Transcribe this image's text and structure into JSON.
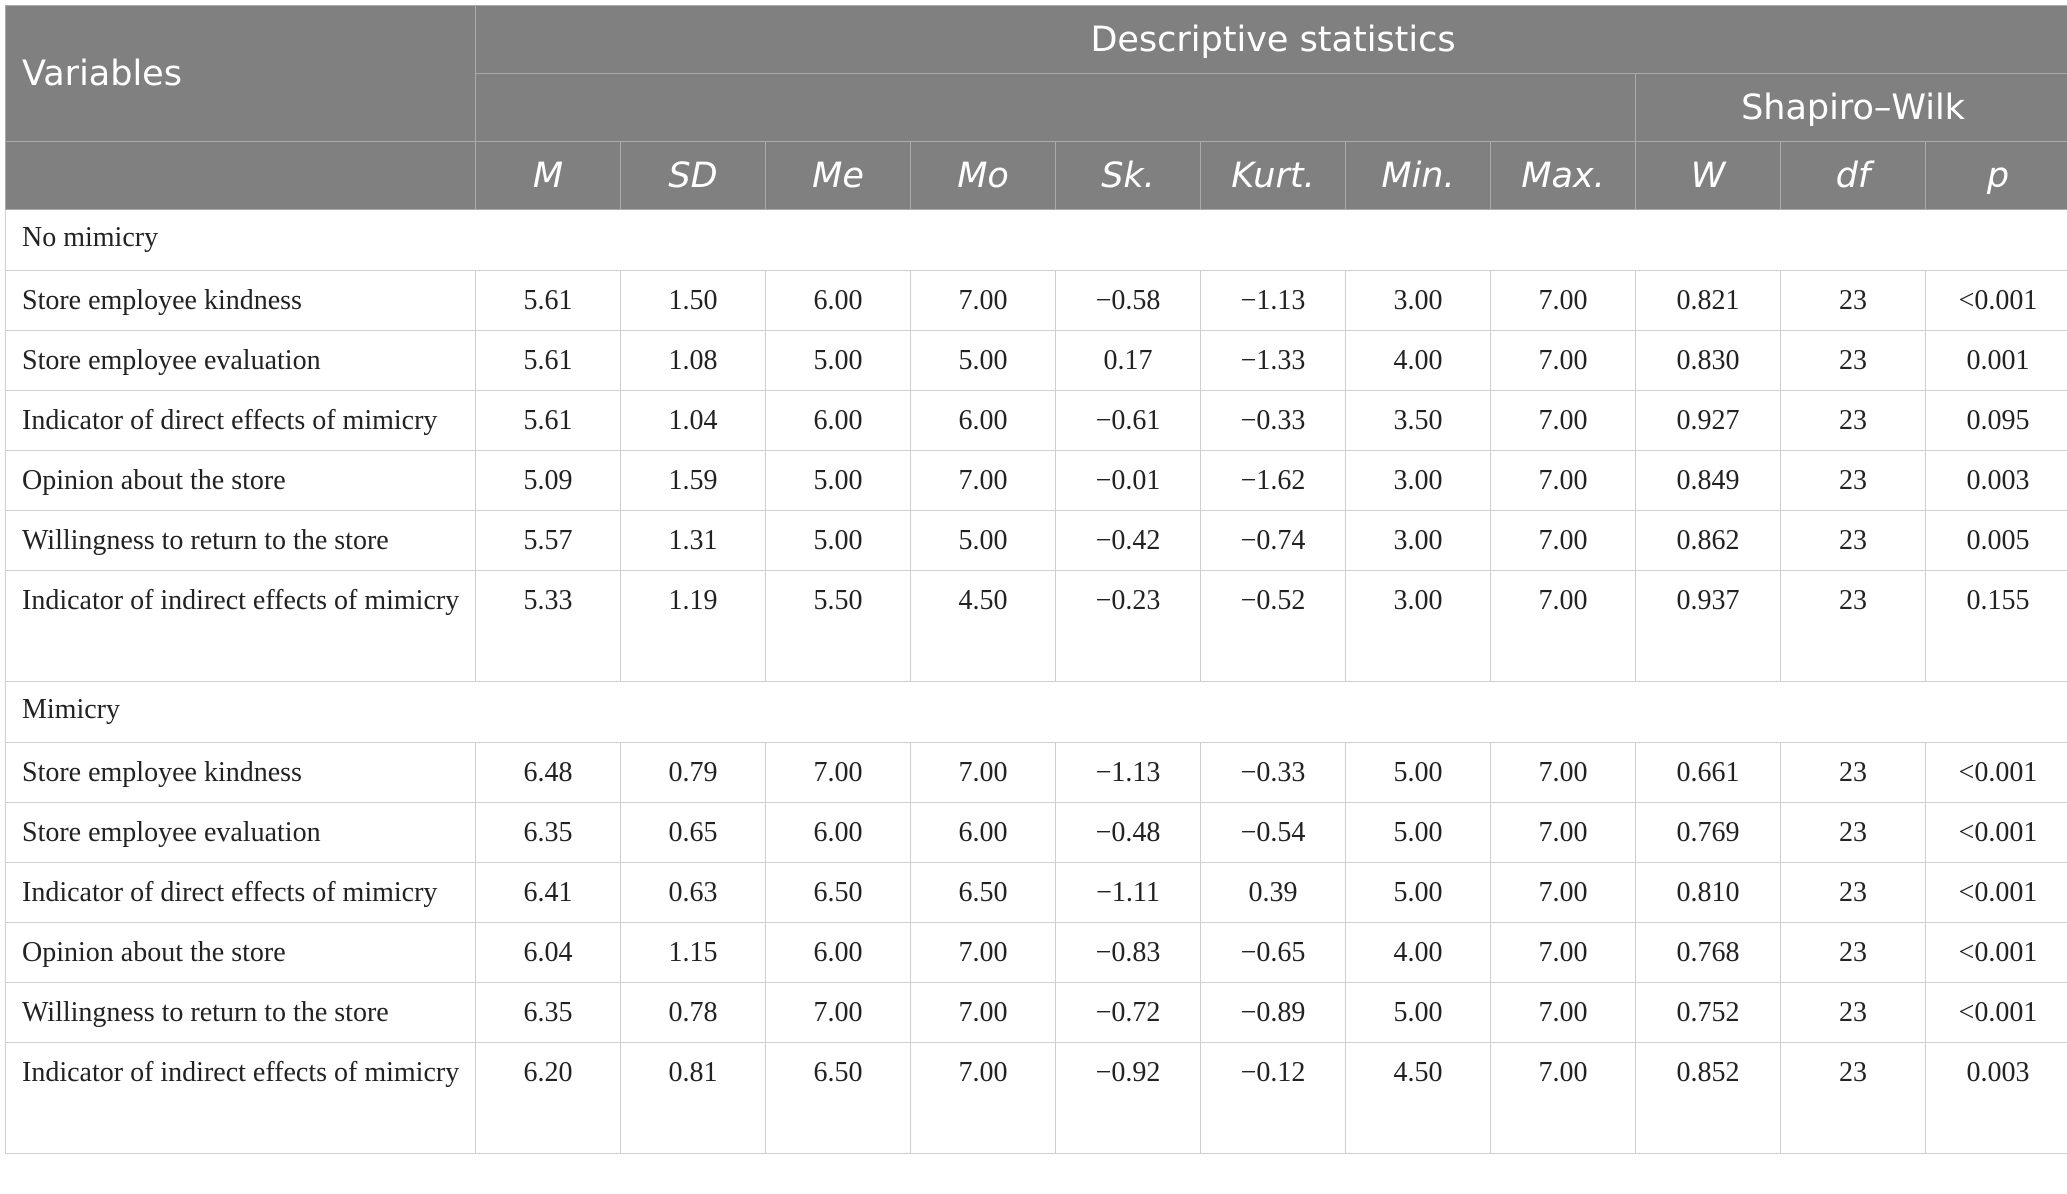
{
  "header": {
    "variables": "Variables",
    "descriptive_statistics": "Descriptive statistics",
    "shapiro_wilk": "Shapiro–Wilk",
    "columns": [
      "M",
      "SD",
      "Me",
      "Mo",
      "Sk.",
      "Kurt.",
      "Min.",
      "Max.",
      "W",
      "df",
      "p"
    ]
  },
  "groups": [
    {
      "label": "No mimicry",
      "rows": [
        {
          "name": "Store employee kindness",
          "values": [
            "5.61",
            "1.50",
            "6.00",
            "7.00",
            "−0.58",
            "−1.13",
            "3.00",
            "7.00",
            "0.821",
            "23",
            "<0.001"
          ]
        },
        {
          "name": "Store employee evaluation",
          "values": [
            "5.61",
            "1.08",
            "5.00",
            "5.00",
            "0.17",
            "−1.33",
            "4.00",
            "7.00",
            "0.830",
            "23",
            "0.001"
          ]
        },
        {
          "name": "Indicator of direct effects of mimicry",
          "values": [
            "5.61",
            "1.04",
            "6.00",
            "6.00",
            "−0.61",
            "−0.33",
            "3.50",
            "7.00",
            "0.927",
            "23",
            "0.095"
          ]
        },
        {
          "name": "Opinion about the store",
          "values": [
            "5.09",
            "1.59",
            "5.00",
            "7.00",
            "−0.01",
            "−1.62",
            "3.00",
            "7.00",
            "0.849",
            "23",
            "0.003"
          ]
        },
        {
          "name": "Willingness to return to the store",
          "values": [
            "5.57",
            "1.31",
            "5.00",
            "5.00",
            "−0.42",
            "−0.74",
            "3.00",
            "7.00",
            "0.862",
            "23",
            "0.005"
          ]
        },
        {
          "name": "Indicator of indirect effects of mimicry",
          "values": [
            "5.33",
            "1.19",
            "5.50",
            "4.50",
            "−0.23",
            "−0.52",
            "3.00",
            "7.00",
            "0.937",
            "23",
            "0.155"
          ]
        }
      ]
    },
    {
      "label": "Mimicry",
      "rows": [
        {
          "name": "Store employee kindness",
          "values": [
            "6.48",
            "0.79",
            "7.00",
            "7.00",
            "−1.13",
            "−0.33",
            "5.00",
            "7.00",
            "0.661",
            "23",
            "<0.001"
          ]
        },
        {
          "name": "Store employee evaluation",
          "values": [
            "6.35",
            "0.65",
            "6.00",
            "6.00",
            "−0.48",
            "−0.54",
            "5.00",
            "7.00",
            "0.769",
            "23",
            "<0.001"
          ]
        },
        {
          "name": "Indicator of direct effects of mimicry",
          "values": [
            "6.41",
            "0.63",
            "6.50",
            "6.50",
            "−1.11",
            "0.39",
            "5.00",
            "7.00",
            "0.810",
            "23",
            "<0.001"
          ]
        },
        {
          "name": "Opinion about the store",
          "values": [
            "6.04",
            "1.15",
            "6.00",
            "7.00",
            "−0.83",
            "−0.65",
            "4.00",
            "7.00",
            "0.768",
            "23",
            "<0.001"
          ]
        },
        {
          "name": "Willingness to return to the store",
          "values": [
            "6.35",
            "0.78",
            "7.00",
            "7.00",
            "−0.72",
            "−0.89",
            "5.00",
            "7.00",
            "0.752",
            "23",
            "<0.001"
          ]
        },
        {
          "name": "Indicator of indirect effects of mimicry",
          "values": [
            "6.20",
            "0.81",
            "6.50",
            "7.00",
            "−0.92",
            "−0.12",
            "4.50",
            "7.00",
            "0.852",
            "23",
            "0.003"
          ]
        }
      ]
    }
  ]
}
